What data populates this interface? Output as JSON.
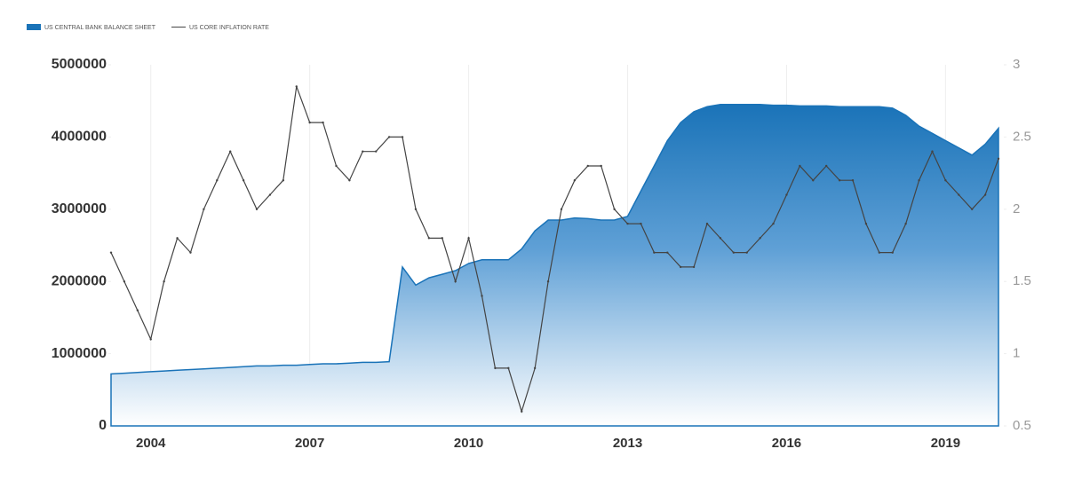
{
  "chart_data": {
    "type": "area-line",
    "x": [
      2003.25,
      2003.5,
      2003.75,
      2004,
      2004.25,
      2004.5,
      2004.75,
      2005,
      2005.25,
      2005.5,
      2005.75,
      2006,
      2006.25,
      2006.5,
      2006.75,
      2007,
      2007.25,
      2007.5,
      2007.75,
      2008,
      2008.25,
      2008.5,
      2008.75,
      2009,
      2009.25,
      2009.5,
      2009.75,
      2010,
      2010.25,
      2010.5,
      2010.75,
      2011,
      2011.25,
      2011.5,
      2011.75,
      2012,
      2012.25,
      2012.5,
      2012.75,
      2013,
      2013.25,
      2013.5,
      2013.75,
      2014,
      2014.25,
      2014.5,
      2014.75,
      2015,
      2015.25,
      2015.5,
      2015.75,
      2016,
      2016.25,
      2016.5,
      2016.75,
      2017,
      2017.25,
      2017.5,
      2017.75,
      2018,
      2018.25,
      2018.5,
      2018.75,
      2019,
      2019.25,
      2019.5,
      2019.75,
      2020
    ],
    "series": [
      {
        "name": "US CENTRAL BANK BALANCE SHEET",
        "color": "#1a73b8",
        "axis": "y",
        "values": [
          720000,
          730000,
          740000,
          750000,
          760000,
          770000,
          780000,
          790000,
          800000,
          810000,
          820000,
          830000,
          830000,
          840000,
          840000,
          850000,
          860000,
          860000,
          870000,
          880000,
          880000,
          890000,
          2200000,
          1950000,
          2050000,
          2100000,
          2150000,
          2250000,
          2300000,
          2300000,
          2300000,
          2450000,
          2700000,
          2850000,
          2850000,
          2880000,
          2870000,
          2850000,
          2850000,
          2900000,
          3250000,
          3600000,
          3950000,
          4200000,
          4350000,
          4420000,
          4450000,
          4450000,
          4450000,
          4450000,
          4440000,
          4440000,
          4430000,
          4430000,
          4430000,
          4420000,
          4420000,
          4420000,
          4420000,
          4400000,
          4300000,
          4150000,
          4050000,
          3950000,
          3850000,
          3750000,
          3900000,
          4120000
        ]
      },
      {
        "name": "US CORE INFLATION RATE",
        "color": "#444444",
        "axis": "y2",
        "values": [
          1.7,
          1.5,
          1.3,
          1.1,
          1.5,
          1.8,
          1.7,
          2.0,
          2.2,
          2.4,
          2.2,
          2.0,
          2.1,
          2.2,
          2.85,
          2.6,
          2.6,
          2.3,
          2.2,
          2.4,
          2.4,
          2.5,
          2.5,
          2.0,
          1.8,
          1.8,
          1.5,
          1.8,
          1.4,
          0.9,
          0.9,
          0.6,
          0.9,
          1.5,
          2.0,
          2.2,
          2.3,
          2.3,
          2.0,
          1.9,
          1.9,
          1.7,
          1.7,
          1.6,
          1.6,
          1.9,
          1.8,
          1.7,
          1.7,
          1.8,
          1.9,
          2.1,
          2.3,
          2.2,
          2.3,
          2.2,
          2.2,
          1.9,
          1.7,
          1.7,
          1.9,
          2.2,
          2.4,
          2.2,
          2.1,
          2.0,
          2.1,
          2.35
        ]
      }
    ],
    "xlim": [
      2003.25,
      2020.1
    ],
    "xticks": [
      2004,
      2007,
      2010,
      2013,
      2016,
      2019
    ],
    "ylim": [
      0,
      5000000
    ],
    "yticks": [
      0,
      1000000,
      2000000,
      3000000,
      4000000,
      5000000
    ],
    "y2lim": [
      0.5,
      3
    ],
    "y2ticks": [
      0.5,
      1,
      1.5,
      2,
      2.5,
      3
    ],
    "grid": true,
    "legend": "top-left"
  }
}
